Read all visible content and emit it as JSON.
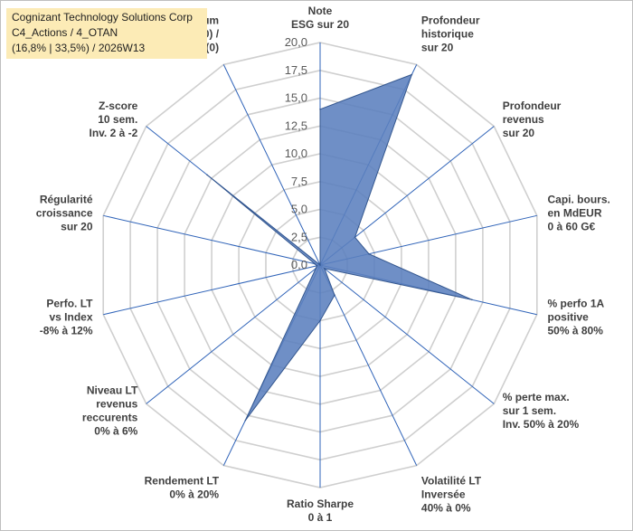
{
  "title": {
    "line1": "Cognizant Technology Solutions Corp",
    "line2": "C4_Actions / 4_OTAN",
    "line3": "(16,8% | 33,5%) / 2026W13"
  },
  "chart_data": {
    "type": "radar",
    "rmax": 20,
    "ticks": [
      "0,0",
      "2,5",
      "5,0",
      "7,5",
      "10,0",
      "12,5",
      "15,0",
      "17,5",
      "20,0"
    ],
    "grid": true,
    "fill_color": "#5b7fbe",
    "fill_opacity": 0.88,
    "stroke_color": "#34578f",
    "axis_color": "#2f63b8",
    "grid_color": "#cfcfcf",
    "axes": [
      {
        "lines": [
          "Note",
          "ESG sur 20"
        ],
        "value": 14
      },
      {
        "lines": [
          "Profondeur",
          "historique",
          "sur 20"
        ],
        "value": 19
      },
      {
        "lines": [
          "Profondeur",
          "revenus",
          "sur 20"
        ],
        "value": 4
      },
      {
        "lines": [
          "Capi. bours.",
          "en MdEUR",
          "0 à 60 G€"
        ],
        "value": 4.5
      },
      {
        "lines": [
          "% perfo 1A",
          "positive",
          "50% à 80%"
        ],
        "value": 14
      },
      {
        "lines": [
          "% perte max.",
          "sur 1 sem.",
          "Inv. 50% à 20%"
        ],
        "value": 0.5
      },
      {
        "lines": [
          "Volatilité LT",
          "Inversée",
          "40% à 0%"
        ],
        "value": 3
      },
      {
        "lines": [
          "Ratio Sharpe",
          "0 à 1"
        ],
        "value": 5
      },
      {
        "lines": [
          "Rendement LT",
          "0% à 20%"
        ],
        "value": 15.5
      },
      {
        "lines": [
          "Niveau LT",
          "revenus",
          "reccurents",
          "0% à 6%"
        ],
        "value": 0.5
      },
      {
        "lines": [
          "Perfo. LT",
          "vs Index",
          "-8% à 12%"
        ],
        "value": 0.3
      },
      {
        "lines": [
          "Régularité",
          "croissance",
          "sur 20"
        ],
        "value": 0.5
      },
      {
        "lines": [
          "Z-score",
          "10 sem.",
          "Inv. 2 à -2"
        ],
        "value": 13
      },
      {
        "lines": [
          "Momentum",
          "Achat (20) /",
          "Vente (0)"
        ],
        "value": 0
      }
    ]
  }
}
